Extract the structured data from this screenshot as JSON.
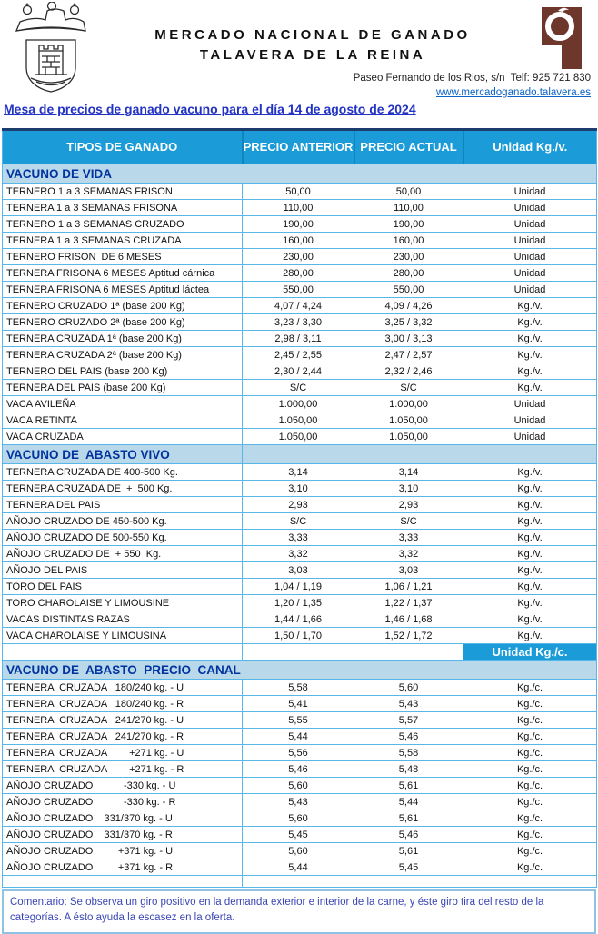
{
  "header": {
    "org_line1": "MERCADO  NACIONAL  DE  GANADO",
    "org_line2": "TALAVERA  DE  LA  REINA",
    "address": "Paseo Fernando de los Rios, s/n  Telf: 925 721 830",
    "website": "www.mercadoganado.talavera.es",
    "crest_icon": "city-coat-of-arms",
    "logo_icon": "mercado-brand-logo",
    "logo_color": "#6e372b"
  },
  "title": "Mesa de precios de ganado vacuno para el día 14 de agosto de 2024",
  "colors": {
    "header_blue": "#1b9cd8",
    "section_band": "#b9d9ea",
    "cell_border": "#56b7e8",
    "section_text": "#0033a0",
    "title_blue": "#2333c3",
    "comment_blue": "#3a46b4"
  },
  "table": {
    "columns": [
      "TIPOS DE GANADO",
      "PRECIO ANTERIOR",
      "PRECIO ACTUAL",
      "Unidad Kg./v."
    ],
    "rows": [
      {
        "t": "section",
        "label": "VACUNO DE VIDA",
        "divided": false
      },
      {
        "t": "data",
        "c": [
          "TERNERO 1 a 3 SEMANAS FRISON",
          "50,00",
          "50,00",
          "Unidad"
        ]
      },
      {
        "t": "data",
        "c": [
          "TERNERA 1 a 3 SEMANAS FRISONA",
          "110,00",
          "110,00",
          "Unidad"
        ]
      },
      {
        "t": "data",
        "c": [
          "TERNERO 1 a 3 SEMANAS CRUZADO",
          "190,00",
          "190,00",
          "Unidad"
        ]
      },
      {
        "t": "data",
        "c": [
          "TERNERA 1 a 3 SEMANAS CRUZADA",
          "160,00",
          "160,00",
          "Unidad"
        ]
      },
      {
        "t": "data",
        "c": [
          "TERNERO FRISON  DE 6 MESES",
          "230,00",
          "230,00",
          "Unidad"
        ]
      },
      {
        "t": "data",
        "c": [
          "TERNERA FRISONA 6 MESES Aptitud cárnica",
          "280,00",
          "280,00",
          "Unidad"
        ]
      },
      {
        "t": "data",
        "c": [
          "TERNERA FRISONA 6 MESES Aptitud láctea",
          "550,00",
          "550,00",
          "Unidad"
        ]
      },
      {
        "t": "data",
        "c": [
          "TERNERO CRUZADO 1ª (base 200 Kg)",
          "4,07 / 4,24",
          "4,09 / 4,26",
          "Kg./v."
        ]
      },
      {
        "t": "data",
        "c": [
          "TERNERO CRUZADO 2ª (base 200 Kg)",
          "3,23 / 3,30",
          "3,25 / 3,32",
          "Kg./v."
        ]
      },
      {
        "t": "data",
        "c": [
          "TERNERA CRUZADA 1ª (base 200 Kg)",
          "2,98 / 3,11",
          "3,00 / 3,13",
          "Kg./v."
        ]
      },
      {
        "t": "data",
        "c": [
          "TERNERA CRUZADA 2ª (base 200 Kg)",
          "2,45 / 2,55",
          "2,47 / 2,57",
          "Kg./v."
        ]
      },
      {
        "t": "data",
        "c": [
          "TERNERO DEL PAIS (base 200 Kg)",
          "2,30 / 2,44",
          "2,32 / 2,46",
          "Kg./v."
        ]
      },
      {
        "t": "data",
        "c": [
          "TERNERA DEL PAIS (base 200 Kg)",
          "S/C",
          "S/C",
          "Kg./v."
        ]
      },
      {
        "t": "data",
        "c": [
          "VACA AVILEÑA",
          "1.000,00",
          "1.000,00",
          "Unidad"
        ]
      },
      {
        "t": "data",
        "c": [
          "VACA RETINTA",
          "1.050,00",
          "1.050,00",
          "Unidad"
        ]
      },
      {
        "t": "data",
        "c": [
          "VACA CRUZADA",
          "1.050,00",
          "1.050,00",
          "Unidad"
        ]
      },
      {
        "t": "section",
        "label": "VACUNO DE  ABASTO VIVO",
        "divided": true
      },
      {
        "t": "data",
        "c": [
          "TERNERA CRUZADA DE 400-500 Kg.",
          "3,14",
          "3,14",
          "Kg./v."
        ]
      },
      {
        "t": "data",
        "c": [
          "TERNERA CRUZADA DE  +  500 Kg.",
          "3,10",
          "3,10",
          "Kg./v."
        ]
      },
      {
        "t": "data",
        "c": [
          "TERNERA DEL PAIS",
          "2,93",
          "2,93",
          "Kg./v."
        ]
      },
      {
        "t": "data",
        "c": [
          "AÑOJO CRUZADO DE 450-500 Kg.",
          "S/C",
          "S/C",
          "Kg./v."
        ]
      },
      {
        "t": "data",
        "c": [
          "AÑOJO CRUZADO DE 500-550 Kg.",
          "3,33",
          "3,33",
          "Kg./v."
        ]
      },
      {
        "t": "data",
        "c": [
          "AÑOJO CRUZADO DE  + 550  Kg.",
          "3,32",
          "3,32",
          "Kg./v."
        ]
      },
      {
        "t": "data",
        "c": [
          "AÑOJO DEL PAIS",
          "3,03",
          "3,03",
          "Kg./v."
        ]
      },
      {
        "t": "data",
        "c": [
          "TORO DEL PAIS",
          "1,04 / 1,19",
          "1,06 / 1,21",
          "Kg./v."
        ]
      },
      {
        "t": "data",
        "c": [
          "TORO CHAROLAISE Y LIMOUSINE",
          "1,20 / 1,35",
          "1,22 / 1,37",
          "Kg./v."
        ]
      },
      {
        "t": "data",
        "c": [
          "VACAS DISTINTAS RAZAS",
          "1,44 / 1,66",
          "1,46 / 1,68",
          "Kg./v."
        ]
      },
      {
        "t": "data",
        "c": [
          "VACA CHAROLAISE Y LIMOUSINA",
          "1,50 / 1,70",
          "1,52 / 1,72",
          "Kg./v."
        ]
      },
      {
        "t": "unitrow",
        "unit": "Unidad Kg./c."
      },
      {
        "t": "section",
        "label": "VACUNO DE  ABASTO  PRECIO  CANAL",
        "divided": false
      },
      {
        "t": "data",
        "c": [
          "TERNERA  CRUZADA   180/240 kg. - U",
          "5,58",
          "5,60",
          "Kg./c."
        ]
      },
      {
        "t": "data",
        "c": [
          "TERNERA  CRUZADA   180/240 kg. - R",
          "5,41",
          "5,43",
          "Kg./c."
        ]
      },
      {
        "t": "data",
        "c": [
          "TERNERA  CRUZADA   241/270 kg. - U",
          "5,55",
          "5,57",
          "Kg./c."
        ]
      },
      {
        "t": "data",
        "c": [
          "TERNERA  CRUZADA   241/270 kg. - R",
          "5,44",
          "5,46",
          "Kg./c."
        ]
      },
      {
        "t": "data",
        "c": [
          "TERNERA  CRUZADA        +271 kg. - U",
          "5,56",
          "5,58",
          "Kg./c."
        ]
      },
      {
        "t": "data",
        "c": [
          "TERNERA  CRUZADA        +271 kg. - R",
          "5,46",
          "5,48",
          "Kg./c."
        ]
      },
      {
        "t": "data",
        "c": [
          "AÑOJO CRUZADO           -330 kg. - U",
          "5,60",
          "5,61",
          "Kg./c."
        ]
      },
      {
        "t": "data",
        "c": [
          "AÑOJO CRUZADO           -330 kg. - R",
          "5,43",
          "5,44",
          "Kg./c."
        ]
      },
      {
        "t": "data",
        "c": [
          "AÑOJO CRUZADO    331/370 kg. - U",
          "5,60",
          "5,61",
          "Kg./c."
        ]
      },
      {
        "t": "data",
        "c": [
          "AÑOJO CRUZADO    331/370 kg. - R",
          "5,45",
          "5,46",
          "Kg./c."
        ]
      },
      {
        "t": "data",
        "c": [
          "AÑOJO CRUZADO         +371 kg. - U",
          "5,60",
          "5,61",
          "Kg./c."
        ]
      },
      {
        "t": "data",
        "c": [
          "AÑOJO CRUZADO         +371 kg. - R",
          "5,44",
          "5,45",
          "Kg./c."
        ]
      },
      {
        "t": "empty"
      }
    ]
  },
  "comment": "Comentario: Se observa un giro positivo en la demanda exterior e interior de la carne, y éste giro tira del resto de la categorías. A ésto ayuda la escasez en la oferta."
}
